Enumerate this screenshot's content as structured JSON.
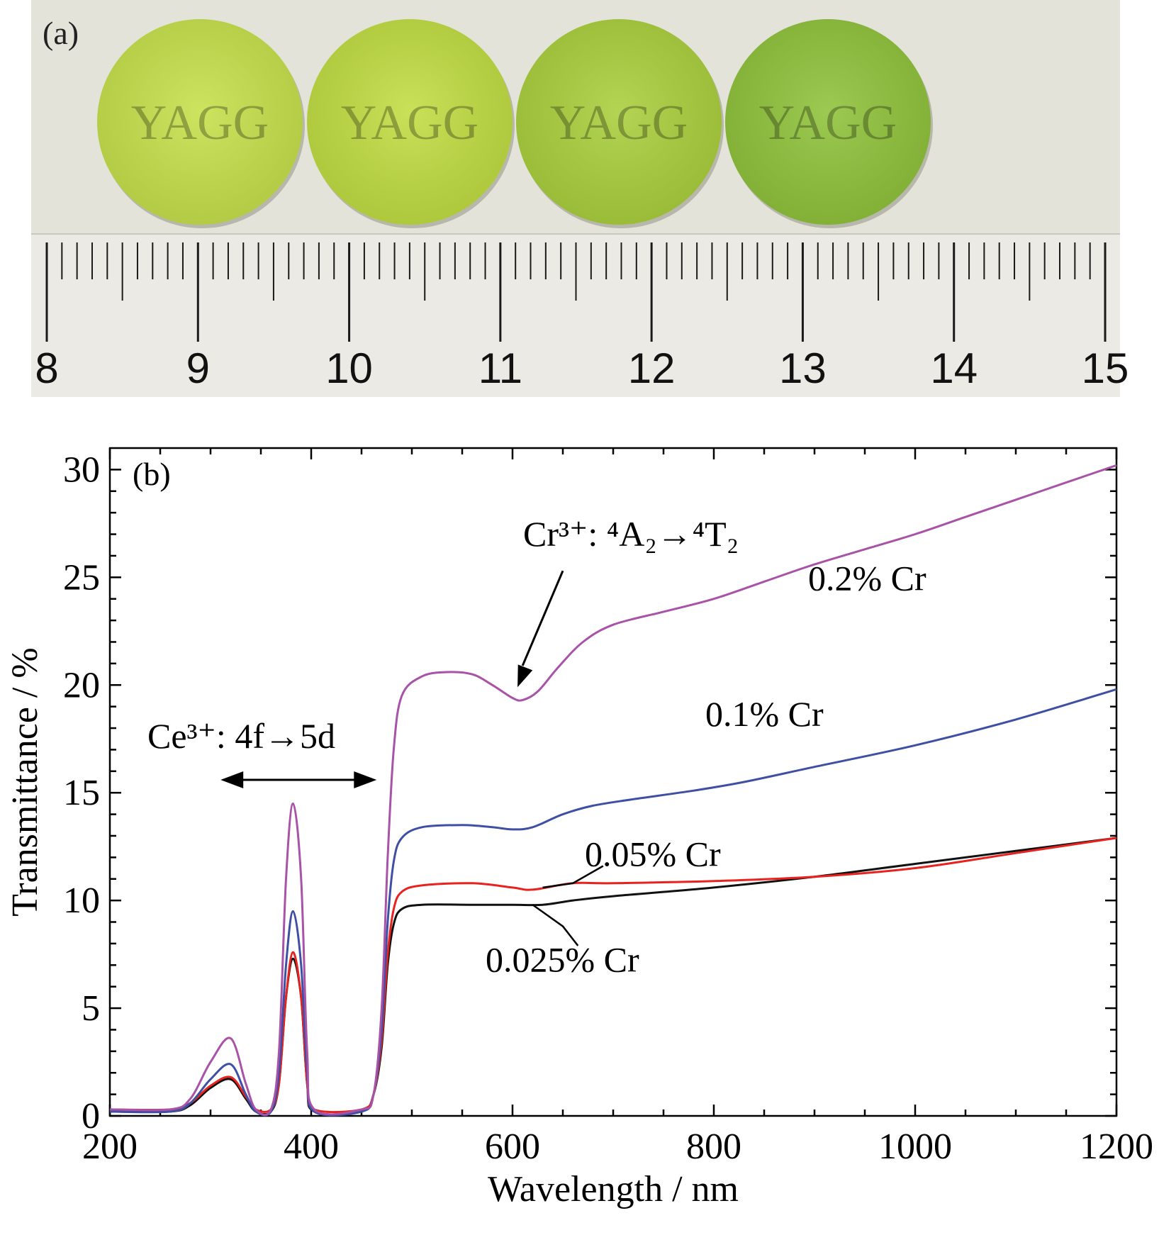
{
  "panel_a": {
    "label": "(a)",
    "sample_text": "YAGG",
    "samples": [
      {
        "color": "#c5e04a"
      },
      {
        "color": "#c0dd42"
      },
      {
        "color": "#a9cf3c"
      },
      {
        "color": "#8fc23a"
      }
    ],
    "ruler": {
      "start": 8,
      "end": 15,
      "labels": [
        "8",
        "9",
        "10",
        "11",
        "12",
        "13",
        "14",
        "15"
      ]
    }
  },
  "panel_b": {
    "label": "(b)",
    "annotations": {
      "cr_transition": "Cr³⁺: ⁴A₂→⁴T₂",
      "ce_transition": "Ce³⁺: 4f→5d"
    }
  },
  "chart_data": {
    "type": "line",
    "xlabel": "Wavelength / nm",
    "ylabel": "Transmittance / %",
    "xlim": [
      200,
      1200
    ],
    "ylim": [
      0,
      31
    ],
    "xticks": [
      200,
      400,
      600,
      800,
      1000,
      1200
    ],
    "yticks": [
      0,
      5,
      10,
      15,
      20,
      25,
      30
    ],
    "series": [
      {
        "name": "0.2% Cr",
        "color": "#a852a8",
        "points": [
          [
            200,
            0.3
          ],
          [
            260,
            0.3
          ],
          [
            280,
            0.8
          ],
          [
            300,
            2.5
          ],
          [
            320,
            3.6
          ],
          [
            335,
            1.5
          ],
          [
            345,
            0.3
          ],
          [
            360,
            0.3
          ],
          [
            368,
            3
          ],
          [
            375,
            11
          ],
          [
            382,
            14.5
          ],
          [
            390,
            11
          ],
          [
            396,
            3
          ],
          [
            403,
            0.3
          ],
          [
            450,
            0.3
          ],
          [
            462,
            1
          ],
          [
            470,
            5
          ],
          [
            476,
            12
          ],
          [
            482,
            17
          ],
          [
            490,
            19.5
          ],
          [
            510,
            20.4
          ],
          [
            535,
            20.6
          ],
          [
            560,
            20.5
          ],
          [
            580,
            20
          ],
          [
            600,
            19.4
          ],
          [
            610,
            19.3
          ],
          [
            625,
            19.7
          ],
          [
            645,
            20.8
          ],
          [
            670,
            22
          ],
          [
            700,
            22.8
          ],
          [
            750,
            23.4
          ],
          [
            800,
            24
          ],
          [
            850,
            24.8
          ],
          [
            900,
            25.6
          ],
          [
            950,
            26.3
          ],
          [
            1000,
            27
          ],
          [
            1050,
            27.8
          ],
          [
            1100,
            28.6
          ],
          [
            1150,
            29.4
          ],
          [
            1200,
            30.2
          ]
        ]
      },
      {
        "name": "0.1% Cr",
        "color": "#3f4fa3",
        "points": [
          [
            200,
            0.2
          ],
          [
            260,
            0.2
          ],
          [
            280,
            0.6
          ],
          [
            300,
            1.7
          ],
          [
            320,
            2.4
          ],
          [
            335,
            1
          ],
          [
            345,
            0.2
          ],
          [
            360,
            0.2
          ],
          [
            368,
            2
          ],
          [
            375,
            7
          ],
          [
            382,
            9.5
          ],
          [
            390,
            7
          ],
          [
            396,
            2
          ],
          [
            403,
            0.2
          ],
          [
            450,
            0.2
          ],
          [
            462,
            1
          ],
          [
            470,
            4
          ],
          [
            476,
            9
          ],
          [
            482,
            11.8
          ],
          [
            490,
            12.9
          ],
          [
            510,
            13.4
          ],
          [
            550,
            13.5
          ],
          [
            580,
            13.4
          ],
          [
            600,
            13.3
          ],
          [
            620,
            13.4
          ],
          [
            650,
            14
          ],
          [
            680,
            14.4
          ],
          [
            720,
            14.7
          ],
          [
            780,
            15.1
          ],
          [
            830,
            15.5
          ],
          [
            900,
            16.2
          ],
          [
            1000,
            17.2
          ],
          [
            1100,
            18.4
          ],
          [
            1200,
            19.8
          ]
        ]
      },
      {
        "name": "0.05% Cr",
        "color": "#e8221e",
        "points": [
          [
            200,
            0.3
          ],
          [
            260,
            0.3
          ],
          [
            280,
            0.6
          ],
          [
            300,
            1.4
          ],
          [
            320,
            1.8
          ],
          [
            335,
            0.9
          ],
          [
            345,
            0.3
          ],
          [
            360,
            0.3
          ],
          [
            368,
            1.5
          ],
          [
            375,
            5.5
          ],
          [
            382,
            7.6
          ],
          [
            390,
            5.5
          ],
          [
            396,
            1.5
          ],
          [
            403,
            0.3
          ],
          [
            450,
            0.3
          ],
          [
            462,
            1
          ],
          [
            470,
            3.5
          ],
          [
            476,
            7.5
          ],
          [
            482,
            9.6
          ],
          [
            490,
            10.4
          ],
          [
            510,
            10.7
          ],
          [
            560,
            10.8
          ],
          [
            600,
            10.6
          ],
          [
            620,
            10.5
          ],
          [
            660,
            10.8
          ],
          [
            700,
            10.8
          ],
          [
            800,
            10.9
          ],
          [
            900,
            11.1
          ],
          [
            1000,
            11.5
          ],
          [
            1100,
            12.2
          ],
          [
            1200,
            12.9
          ]
        ]
      },
      {
        "name": "0.025% Cr",
        "color": "#111111",
        "points": [
          [
            200,
            0.2
          ],
          [
            260,
            0.2
          ],
          [
            280,
            0.5
          ],
          [
            300,
            1.3
          ],
          [
            320,
            1.7
          ],
          [
            335,
            0.8
          ],
          [
            345,
            0.2
          ],
          [
            360,
            0.2
          ],
          [
            368,
            1.5
          ],
          [
            375,
            5.5
          ],
          [
            382,
            7.3
          ],
          [
            390,
            5.5
          ],
          [
            396,
            1.5
          ],
          [
            403,
            0.2
          ],
          [
            450,
            0.2
          ],
          [
            462,
            1
          ],
          [
            470,
            3.2
          ],
          [
            476,
            7
          ],
          [
            482,
            8.9
          ],
          [
            490,
            9.6
          ],
          [
            510,
            9.8
          ],
          [
            560,
            9.8
          ],
          [
            600,
            9.8
          ],
          [
            630,
            9.8
          ],
          [
            660,
            10
          ],
          [
            700,
            10.2
          ],
          [
            800,
            10.6
          ],
          [
            900,
            11.1
          ],
          [
            1000,
            11.7
          ],
          [
            1100,
            12.3
          ],
          [
            1200,
            12.9
          ]
        ]
      }
    ]
  }
}
